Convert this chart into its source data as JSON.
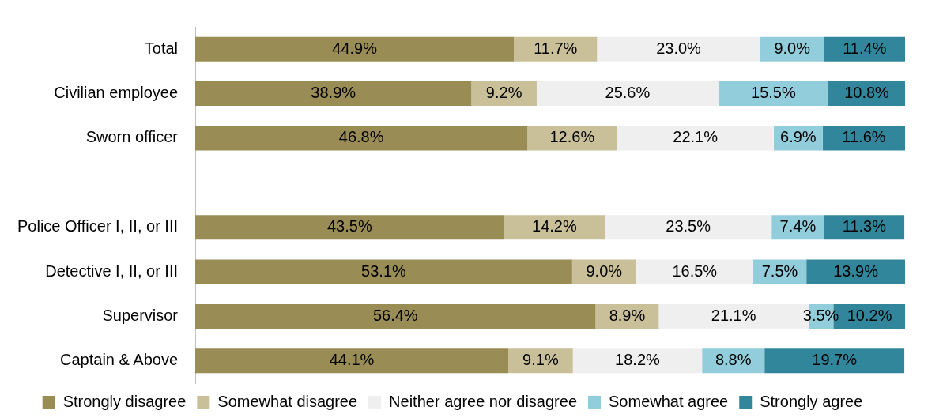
{
  "chart_data": {
    "type": "bar",
    "orientation": "horizontal",
    "stacked": true,
    "tick_labels": "y",
    "legend": "bottom",
    "xlim": [
      0,
      100
    ],
    "categories": [
      "Total",
      "Civilian employee",
      "Sworn officer",
      null,
      "Police Officer I, II, or III",
      "Detective I, II, or III",
      "Supervisor",
      "Captain & Above"
    ],
    "series": [
      {
        "name": "Strongly disagree",
        "color": "#998c55",
        "values": [
          44.9,
          38.9,
          46.8,
          null,
          43.5,
          53.1,
          56.4,
          44.1
        ],
        "value_labels": [
          "44.9%",
          "38.9%",
          "46.8%",
          null,
          "43.5%",
          "53.1%",
          "56.4%",
          "44.1%"
        ]
      },
      {
        "name": "Somewhat disagree",
        "color": "#c9bf98",
        "values": [
          11.7,
          9.2,
          12.6,
          null,
          14.2,
          9.0,
          8.9,
          9.1
        ],
        "value_labels": [
          "11.7%",
          "9.2%",
          "12.6%",
          null,
          "14.2%",
          "9.0%",
          "8.9%",
          "9.1%"
        ]
      },
      {
        "name": "Neither agree nor disagree",
        "color": "#efefef",
        "values": [
          23.0,
          25.6,
          22.1,
          null,
          23.5,
          16.5,
          21.1,
          18.2
        ],
        "value_labels": [
          "23.0%",
          "25.6%",
          "22.1%",
          null,
          "23.5%",
          "16.5%",
          "21.1%",
          "18.2%"
        ]
      },
      {
        "name": "Somewhat agree",
        "color": "#92cddc",
        "values": [
          9.0,
          15.5,
          6.9,
          null,
          7.4,
          7.5,
          3.5,
          8.8
        ],
        "value_labels": [
          "9.0%",
          "15.5%",
          "6.9%",
          null,
          "7.4%",
          "7.5%",
          "3.5%",
          "8.8%"
        ]
      },
      {
        "name": "Strongly agree",
        "color": "#31869b",
        "values": [
          11.4,
          10.8,
          11.6,
          null,
          11.3,
          13.9,
          10.2,
          19.7
        ],
        "value_labels": [
          "11.4%",
          "10.8%",
          "11.6%",
          null,
          "11.3%",
          "13.9%",
          "10.2%",
          "19.7%"
        ]
      }
    ]
  }
}
